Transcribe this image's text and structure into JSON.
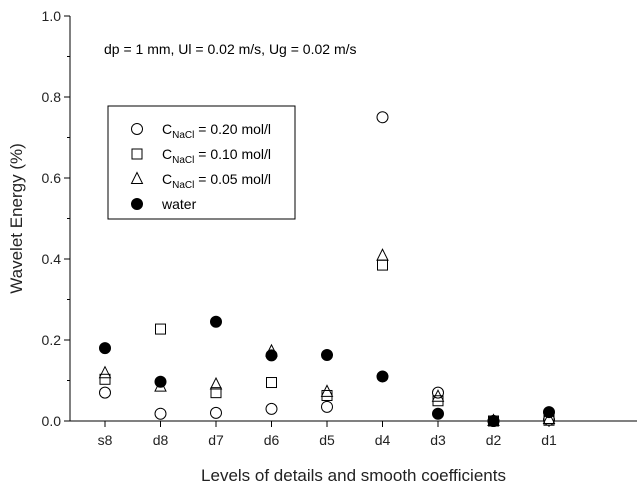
{
  "chart_data": {
    "type": "scatter",
    "title": "",
    "annotation": "dp = 1 mm, Ul = 0.02 m/s, Ug = 0.02 m/s",
    "xlabel": "Levels of details and smooth coefficients",
    "ylabel": "Wavelet Energy (%)",
    "categories": [
      "s8",
      "d8",
      "d7",
      "d6",
      "d5",
      "d4",
      "d3",
      "d2",
      "d1"
    ],
    "ylim": [
      0.0,
      1.0
    ],
    "yticks": [
      "0.0",
      "0.2",
      "0.4",
      "0.6",
      "0.8",
      "1.0"
    ],
    "grid": false,
    "legend_position": "top-left",
    "series": [
      {
        "name_main": "C",
        "name_sub": "NaCl",
        "name_rest": " = 0.20 mol/l",
        "marker": "open-circle",
        "values": [
          0.07,
          0.018,
          0.02,
          0.03,
          0.035,
          0.75,
          0.07,
          0.0,
          0.003
        ]
      },
      {
        "name_main": "C",
        "name_sub": "NaCl",
        "name_rest": " = 0.10 mol/l",
        "marker": "open-square",
        "values": [
          0.103,
          0.227,
          0.07,
          0.095,
          0.063,
          0.385,
          0.05,
          0.0,
          0.002
        ]
      },
      {
        "name_main": "C",
        "name_sub": "NaCl",
        "name_rest": " = 0.05 mol/l",
        "marker": "open-triangle",
        "values": [
          0.118,
          0.085,
          0.09,
          0.172,
          0.072,
          0.408,
          0.06,
          0.0,
          0.005
        ]
      },
      {
        "name_main": "water",
        "name_sub": "",
        "name_rest": "",
        "marker": "filled-circle",
        "values": [
          0.18,
          0.097,
          0.245,
          0.162,
          0.163,
          0.11,
          0.018,
          0.0,
          0.022
        ]
      }
    ]
  }
}
